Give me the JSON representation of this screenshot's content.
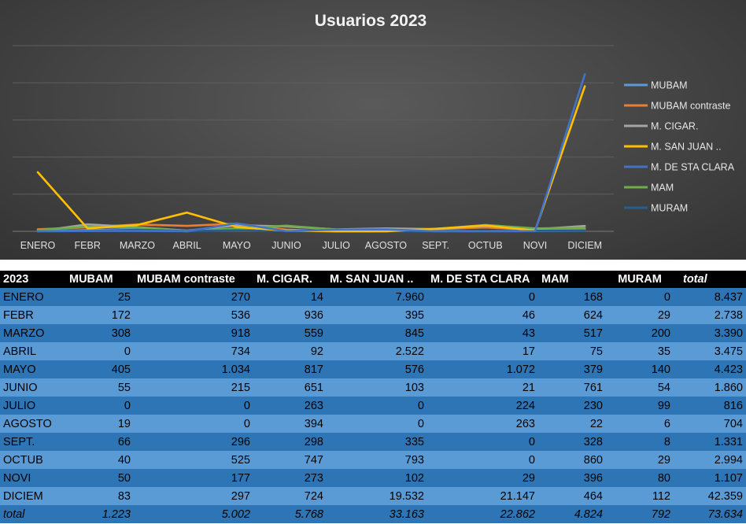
{
  "chart_data": {
    "type": "line",
    "title": "Usuarios 2023",
    "categories": [
      "ENERO",
      "FEBR",
      "MARZO",
      "ABRIL",
      "MAYO",
      "JUNIO",
      "JULIO",
      "AGOSTO",
      "SEPT.",
      "OCTUB",
      "NOVI",
      "DICIEM"
    ],
    "ylim": [
      0,
      25000
    ],
    "grid": true,
    "legend": "right",
    "series": [
      {
        "name": "MUBAM",
        "color": "#5b9bd5",
        "values": [
          25,
          172,
          308,
          0,
          405,
          55,
          0,
          19,
          66,
          40,
          50,
          83
        ]
      },
      {
        "name": "MUBAM contraste",
        "color": "#ed7d31",
        "values": [
          270,
          536,
          918,
          734,
          1034,
          215,
          0,
          0,
          296,
          525,
          177,
          297
        ]
      },
      {
        "name": "M. CIGAR.",
        "color": "#a5a5a5",
        "values": [
          14,
          936,
          559,
          92,
          817,
          651,
          263,
          394,
          298,
          747,
          273,
          724
        ]
      },
      {
        "name": "M. SAN JUAN ..",
        "color": "#ffc000",
        "values": [
          7960,
          395,
          845,
          2522,
          576,
          103,
          0,
          0,
          335,
          793,
          102,
          19532
        ]
      },
      {
        "name": "M. DE STA CLARA",
        "color": "#4472c4",
        "values": [
          0,
          46,
          43,
          17,
          1072,
          21,
          224,
          263,
          0,
          0,
          29,
          21147
        ]
      },
      {
        "name": "MAM",
        "color": "#70ad47",
        "values": [
          168,
          624,
          517,
          75,
          379,
          761,
          230,
          22,
          328,
          860,
          396,
          464
        ]
      },
      {
        "name": "MURAM",
        "color": "#255e91",
        "values": [
          0,
          29,
          200,
          35,
          140,
          54,
          99,
          6,
          8,
          29,
          80,
          112
        ]
      }
    ]
  },
  "table": {
    "year_label": "2023",
    "total_header": "total",
    "total_label": "total",
    "rows": [
      [
        "ENERO",
        "25",
        "270",
        "14",
        "7.960",
        "0",
        "168",
        "0",
        "8.437"
      ],
      [
        "FEBR",
        "172",
        "536",
        "936",
        "395",
        "46",
        "624",
        "29",
        "2.738"
      ],
      [
        "MARZO",
        "308",
        "918",
        "559",
        "845",
        "43",
        "517",
        "200",
        "3.390"
      ],
      [
        "ABRIL",
        "0",
        "734",
        "92",
        "2.522",
        "17",
        "75",
        "35",
        "3.475"
      ],
      [
        "MAYO",
        "405",
        "1.034",
        "817",
        "576",
        "1.072",
        "379",
        "140",
        "4.423"
      ],
      [
        "JUNIO",
        "55",
        "215",
        "651",
        "103",
        "21",
        "761",
        "54",
        "1.860"
      ],
      [
        "JULIO",
        "0",
        "0",
        "263",
        "0",
        "224",
        "230",
        "99",
        "816"
      ],
      [
        "AGOSTO",
        "19",
        "0",
        "394",
        "0",
        "263",
        "22",
        "6",
        "704"
      ],
      [
        "SEPT.",
        "66",
        "296",
        "298",
        "335",
        "0",
        "328",
        "8",
        "1.331"
      ],
      [
        "OCTUB",
        "40",
        "525",
        "747",
        "793",
        "0",
        "860",
        "29",
        "2.994"
      ],
      [
        "NOVI",
        "50",
        "177",
        "273",
        "102",
        "29",
        "396",
        "80",
        "1.107"
      ],
      [
        "DICIEM",
        "83",
        "297",
        "724",
        "19.532",
        "21.147",
        "464",
        "112",
        "42.359"
      ]
    ],
    "totals": [
      "1.223",
      "5.002",
      "5.768",
      "33.163",
      "22.862",
      "4.824",
      "792",
      "73.634"
    ]
  }
}
